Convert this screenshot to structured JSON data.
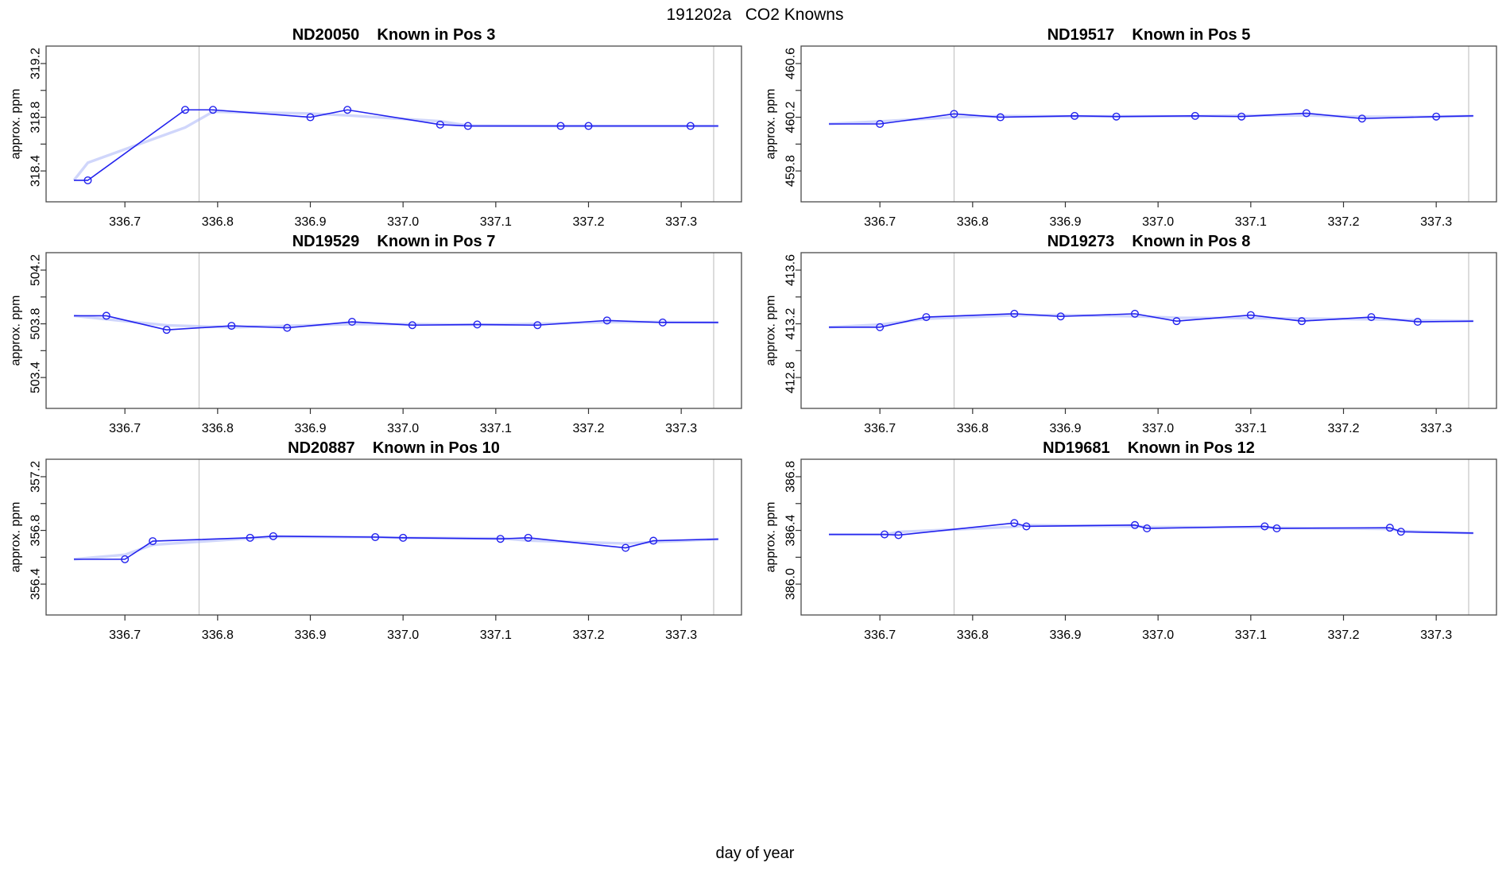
{
  "main_title": "191202a   CO2 Knowns",
  "outer_xlabel": "day of year",
  "colors": {
    "line": "#2222ee",
    "halo": "#aab4f7",
    "vline": "#c9c9c9",
    "box": "#4a4a4a",
    "tick": "#333333",
    "text": "#000000"
  },
  "axis": {
    "xlim": [
      336.615,
      337.365
    ],
    "xticks": [
      336.7,
      336.8,
      336.9,
      337.0,
      337.1,
      337.2,
      337.3
    ],
    "xtick_labels": [
      "336.7",
      "336.8",
      "336.9",
      "337.0",
      "337.1",
      "337.2",
      "337.3"
    ],
    "vlines": [
      336.78,
      337.335
    ]
  },
  "chart_data": [
    {
      "type": "line",
      "title": "ND20050    Known in Pos 3",
      "ylabel": "approx. ppm",
      "ylim": [
        318.17,
        319.33
      ],
      "yticks_major": [
        318.4,
        318.8,
        319.2
      ],
      "ytick_labels": [
        "318.4",
        "318.8",
        "319.2"
      ],
      "yticks_minor": [
        318.6,
        319.0
      ],
      "x": [
        336.66,
        336.765,
        336.795,
        336.9,
        336.94,
        337.04,
        337.07,
        337.17,
        337.2,
        337.31
      ],
      "y": [
        318.33,
        318.855,
        318.855,
        318.8,
        318.855,
        318.745,
        318.735,
        318.735,
        318.735,
        318.735
      ],
      "line_start": {
        "x": 336.645
      },
      "line_end": {
        "x": 337.34,
        "y": 318.735
      }
    },
    {
      "type": "line",
      "title": "ND19517    Known in Pos 5",
      "ylabel": "approx. ppm",
      "ylim": [
        459.57,
        460.73
      ],
      "yticks_major": [
        459.8,
        460.2,
        460.6
      ],
      "ytick_labels": [
        "459.8",
        "460.2",
        "460.6"
      ],
      "yticks_minor": [
        460.0,
        460.4
      ],
      "x": [
        336.7,
        336.78,
        336.83,
        336.91,
        336.955,
        337.04,
        337.09,
        337.16,
        337.22,
        337.3
      ],
      "y": [
        460.15,
        460.225,
        460.2,
        460.21,
        460.205,
        460.21,
        460.205,
        460.23,
        460.19,
        460.205
      ],
      "line_start": {
        "x": 336.645
      },
      "line_end": {
        "x": 337.34,
        "y": 460.21
      }
    },
    {
      "type": "line",
      "title": "ND19529    Known in Pos 7",
      "ylabel": "approx. ppm",
      "ylim": [
        503.17,
        504.33
      ],
      "yticks_major": [
        503.4,
        503.8,
        504.2
      ],
      "ytick_labels": [
        "503.4",
        "503.8",
        "504.2"
      ],
      "yticks_minor": [
        503.6,
        504.0
      ],
      "x": [
        336.68,
        336.745,
        336.815,
        336.875,
        336.945,
        337.01,
        337.08,
        337.145,
        337.22,
        337.28
      ],
      "y": [
        503.86,
        503.755,
        503.785,
        503.77,
        503.815,
        503.79,
        503.795,
        503.79,
        503.825,
        503.81
      ],
      "line_start": {
        "x": 336.645
      },
      "line_end": {
        "x": 337.34,
        "y": 503.81
      }
    },
    {
      "type": "line",
      "title": "ND19273    Known in Pos 8",
      "ylabel": "approx. ppm",
      "ylim": [
        412.57,
        413.73
      ],
      "yticks_major": [
        412.8,
        413.2,
        413.6
      ],
      "ytick_labels": [
        "412.8",
        "413.2",
        "413.6"
      ],
      "yticks_minor": [
        413.0,
        413.4
      ],
      "x": [
        336.7,
        336.75,
        336.845,
        336.895,
        336.975,
        337.02,
        337.1,
        337.155,
        337.23,
        337.28
      ],
      "y": [
        413.175,
        413.25,
        413.275,
        413.255,
        413.275,
        413.22,
        413.265,
        413.22,
        413.25,
        413.215
      ],
      "line_start": {
        "x": 336.645
      },
      "line_end": {
        "x": 337.34,
        "y": 413.22
      }
    },
    {
      "type": "line",
      "title": "ND20887    Known in Pos 10",
      "ylabel": "approx. ppm",
      "ylim": [
        356.17,
        357.33
      ],
      "yticks_major": [
        356.4,
        356.8,
        357.2
      ],
      "ytick_labels": [
        "356.4",
        "356.8",
        "357.2"
      ],
      "yticks_minor": [
        356.6,
        357.0
      ],
      "x": [
        336.7,
        336.73,
        336.835,
        336.86,
        336.97,
        337.0,
        337.105,
        337.135,
        337.24,
        337.27
      ],
      "y": [
        356.585,
        356.72,
        356.745,
        356.757,
        356.75,
        356.745,
        356.737,
        356.745,
        356.67,
        356.723
      ],
      "line_start": {
        "x": 336.645
      },
      "line_end": {
        "x": 337.34,
        "y": 356.735
      }
    },
    {
      "type": "line",
      "title": "ND19681    Known in Pos 12",
      "ylabel": "approx. ppm",
      "ylim": [
        385.77,
        386.93
      ],
      "yticks_major": [
        386.0,
        386.4,
        386.8
      ],
      "ytick_labels": [
        "386.0",
        "386.4",
        "386.8"
      ],
      "yticks_minor": [
        386.2,
        386.6
      ],
      "x": [
        336.705,
        336.72,
        336.845,
        336.858,
        336.975,
        336.988,
        337.115,
        337.128,
        337.25,
        337.262
      ],
      "y": [
        386.37,
        386.365,
        386.455,
        386.43,
        386.44,
        386.415,
        386.43,
        386.415,
        386.42,
        386.39
      ],
      "line_start": {
        "x": 336.645
      },
      "line_end": {
        "x": 337.34,
        "y": 386.38
      }
    }
  ]
}
